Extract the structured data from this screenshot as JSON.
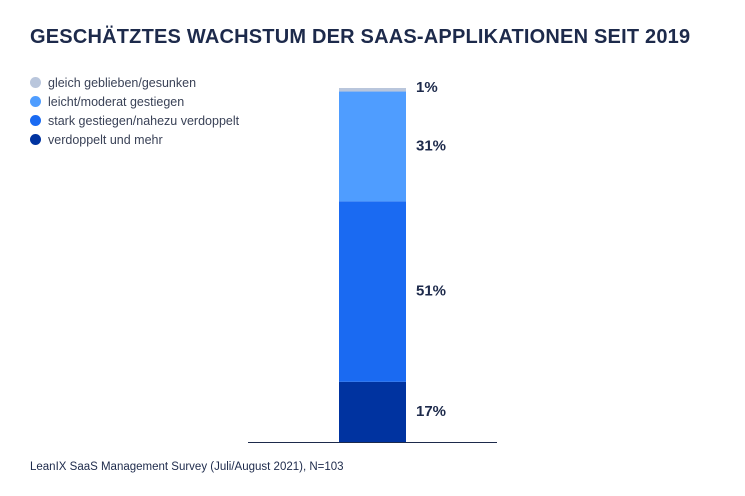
{
  "chart_data": {
    "type": "bar",
    "stacked": true,
    "title": "GESCHÄTZTES WACHSTUM DER SAAS-APPLIKATIONEN SEIT 2019",
    "legend_position": "top-left",
    "grid": false,
    "ylim": [
      0,
      100
    ],
    "series": [
      {
        "name": "verdoppelt und mehr",
        "value": 17,
        "label": "17%",
        "color": "#0033a0"
      },
      {
        "name": "stark gestiegen/nahezu verdoppelt",
        "value": 51,
        "label": "51%",
        "color": "#1a6af2"
      },
      {
        "name": "leicht/moderat gestiegen",
        "value": 31,
        "label": "31%",
        "color": "#4f9dff"
      },
      {
        "name": "gleich geblieben/gesunken",
        "value": 1,
        "label": "1%",
        "color": "#b9c6dc"
      }
    ]
  },
  "legend": {
    "items": [
      {
        "label": "gleich geblieben/gesunken",
        "color": "#b9c6dc"
      },
      {
        "label": "leicht/moderat gestiegen",
        "color": "#4f9dff"
      },
      {
        "label": "stark gestiegen/nahezu verdoppelt",
        "color": "#1a6af2"
      },
      {
        "label": "verdoppelt und mehr",
        "color": "#0033a0"
      }
    ]
  },
  "footer": {
    "source": "LeanIX SaaS Management Survey (Juli/August 2021), N=103"
  }
}
